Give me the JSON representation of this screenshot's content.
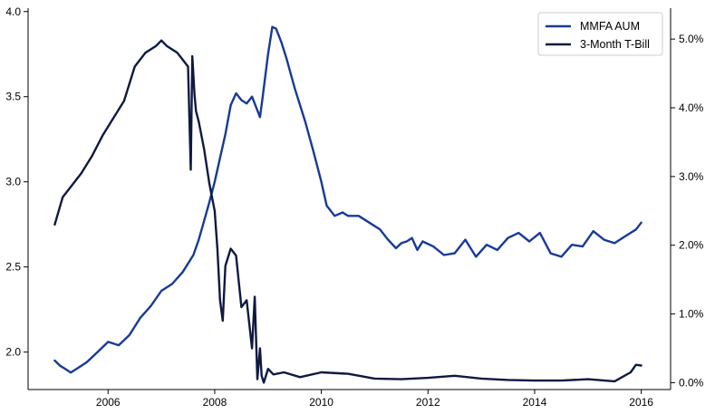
{
  "chart_data": {
    "type": "line",
    "title": "",
    "xlabel": "",
    "ylabel_left": "",
    "ylabel_right": "",
    "xlim": [
      2004.5,
      2016.55
    ],
    "ylim_left": [
      1.78,
      4.02
    ],
    "ylim_right": [
      -0.1,
      5.45
    ],
    "grid": false,
    "legend_position": "top-right",
    "x_ticks": [
      2006,
      2008,
      2010,
      2012,
      2014,
      2016
    ],
    "x_tick_labels": [
      "2006",
      "2008",
      "2010",
      "2012",
      "2014",
      "2016"
    ],
    "y_left_ticks": [
      2.0,
      2.5,
      3.0,
      3.5,
      4.0
    ],
    "y_left_tick_labels": [
      "2.0",
      "2.5",
      "3.0",
      "3.5",
      "4.0"
    ],
    "y_right_ticks": [
      0,
      1,
      2,
      3,
      4,
      5
    ],
    "y_right_tick_labels": [
      "0.0%",
      "1.0%",
      "2.0%",
      "3.0%",
      "4.0%",
      "5.0%"
    ],
    "series": [
      {
        "name": "MMFA AUM",
        "color": "#173a96",
        "axis": "left",
        "x": [
          2005.0,
          2005.1,
          2005.2,
          2005.3,
          2005.45,
          2005.6,
          2005.8,
          2006.0,
          2006.2,
          2006.4,
          2006.6,
          2006.8,
          2007.0,
          2007.2,
          2007.4,
          2007.6,
          2007.7,
          2007.8,
          2007.9,
          2008.0,
          2008.1,
          2008.2,
          2008.3,
          2008.4,
          2008.5,
          2008.6,
          2008.7,
          2008.8,
          2008.85,
          2008.9,
          2009.0,
          2009.08,
          2009.15,
          2009.25,
          2009.35,
          2009.5,
          2009.7,
          2009.85,
          2010.0,
          2010.1,
          2010.25,
          2010.4,
          2010.5,
          2010.7,
          2010.9,
          2011.1,
          2011.25,
          2011.4,
          2011.5,
          2011.6,
          2011.7,
          2011.8,
          2011.9,
          2012.1,
          2012.3,
          2012.5,
          2012.7,
          2012.9,
          2013.1,
          2013.3,
          2013.5,
          2013.7,
          2013.9,
          2014.1,
          2014.3,
          2014.5,
          2014.7,
          2014.9,
          2015.1,
          2015.3,
          2015.5,
          2015.7,
          2015.9,
          2016.0
        ],
        "values": [
          1.95,
          1.92,
          1.9,
          1.88,
          1.91,
          1.94,
          2.0,
          2.06,
          2.04,
          2.1,
          2.2,
          2.27,
          2.36,
          2.4,
          2.47,
          2.57,
          2.66,
          2.77,
          2.88,
          3.0,
          3.14,
          3.28,
          3.45,
          3.52,
          3.48,
          3.46,
          3.5,
          3.42,
          3.38,
          3.5,
          3.75,
          3.91,
          3.9,
          3.82,
          3.72,
          3.55,
          3.35,
          3.18,
          3.0,
          2.86,
          2.8,
          2.82,
          2.8,
          2.8,
          2.76,
          2.72,
          2.66,
          2.61,
          2.64,
          2.65,
          2.67,
          2.6,
          2.65,
          2.62,
          2.57,
          2.58,
          2.66,
          2.56,
          2.63,
          2.6,
          2.67,
          2.7,
          2.65,
          2.7,
          2.58,
          2.56,
          2.63,
          2.62,
          2.71,
          2.66,
          2.64,
          2.68,
          2.72,
          2.76
        ]
      },
      {
        "name": "3-Month T-Bill",
        "color": "#0f1941",
        "axis": "right",
        "x": [
          2005.0,
          2005.15,
          2005.3,
          2005.5,
          2005.7,
          2005.9,
          2006.1,
          2006.3,
          2006.5,
          2006.7,
          2006.9,
          2007.0,
          2007.1,
          2007.2,
          2007.3,
          2007.4,
          2007.5,
          2007.55,
          2007.58,
          2007.62,
          2007.65,
          2007.7,
          2007.8,
          2007.9,
          2008.0,
          2008.05,
          2008.1,
          2008.15,
          2008.2,
          2008.3,
          2008.4,
          2008.5,
          2008.6,
          2008.7,
          2008.75,
          2008.8,
          2008.85,
          2008.88,
          2008.92,
          2009.0,
          2009.1,
          2009.3,
          2009.6,
          2010.0,
          2010.5,
          2011.0,
          2011.5,
          2012.0,
          2012.5,
          2013.0,
          2013.5,
          2014.0,
          2014.5,
          2015.0,
          2015.5,
          2015.8,
          2015.9,
          2016.0
        ],
        "values": [
          2.3,
          2.7,
          2.85,
          3.05,
          3.3,
          3.6,
          3.85,
          4.1,
          4.6,
          4.8,
          4.9,
          4.98,
          4.9,
          4.85,
          4.8,
          4.7,
          4.6,
          3.1,
          4.75,
          4.2,
          3.95,
          3.8,
          3.4,
          2.9,
          2.5,
          1.95,
          1.2,
          0.9,
          1.7,
          1.95,
          1.85,
          1.1,
          1.2,
          0.5,
          1.25,
          0.05,
          0.5,
          0.1,
          0.0,
          0.2,
          0.12,
          0.15,
          0.08,
          0.15,
          0.13,
          0.06,
          0.05,
          0.07,
          0.1,
          0.06,
          0.04,
          0.03,
          0.03,
          0.05,
          0.02,
          0.15,
          0.26,
          0.25
        ]
      }
    ]
  }
}
